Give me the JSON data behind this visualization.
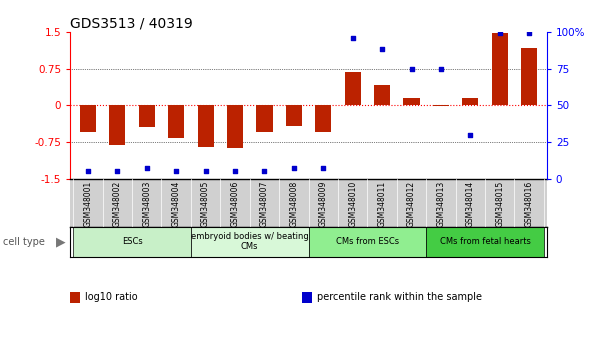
{
  "title": "GDS3513 / 40319",
  "samples": [
    "GSM348001",
    "GSM348002",
    "GSM348003",
    "GSM348004",
    "GSM348005",
    "GSM348006",
    "GSM348007",
    "GSM348008",
    "GSM348009",
    "GSM348010",
    "GSM348011",
    "GSM348012",
    "GSM348013",
    "GSM348014",
    "GSM348015",
    "GSM348016"
  ],
  "log10_ratio": [
    -0.55,
    -0.82,
    -0.45,
    -0.68,
    -0.85,
    -0.88,
    -0.55,
    -0.42,
    -0.55,
    0.68,
    0.42,
    0.15,
    -0.02,
    0.15,
    1.48,
    1.18
  ],
  "percentile_rank": [
    5,
    5,
    7,
    5,
    5,
    5,
    5,
    7,
    7,
    96,
    88,
    75,
    75,
    30,
    99,
    99
  ],
  "cell_type_groups": [
    {
      "label": "ESCs",
      "start": 0,
      "end": 3,
      "color": "#c8f0c8"
    },
    {
      "label": "embryoid bodies w/ beating\nCMs",
      "start": 4,
      "end": 7,
      "color": "#d8f8d8"
    },
    {
      "label": "CMs from ESCs",
      "start": 8,
      "end": 11,
      "color": "#90ee90"
    },
    {
      "label": "CMs from fetal hearts",
      "start": 12,
      "end": 15,
      "color": "#44cc44"
    }
  ],
  "bar_color": "#bb2200",
  "dot_color": "#0000cc",
  "ylim_left": [
    -1.5,
    1.5
  ],
  "ylim_right": [
    0,
    100
  ],
  "yticks_left": [
    -1.5,
    -0.75,
    0,
    0.75,
    1.5
  ],
  "ytick_labels_left": [
    "-1.5",
    "-0.75",
    "0",
    "0.75",
    "1.5"
  ],
  "yticks_right": [
    0,
    25,
    50,
    75,
    100
  ],
  "ytick_labels_right": [
    "0",
    "25",
    "50",
    "75",
    "100%"
  ],
  "background_color": "#ffffff",
  "sample_box_color": "#d0d0d0",
  "legend_items": [
    {
      "color": "#bb2200",
      "label": "log10 ratio"
    },
    {
      "color": "#0000cc",
      "label": "percentile rank within the sample"
    }
  ]
}
